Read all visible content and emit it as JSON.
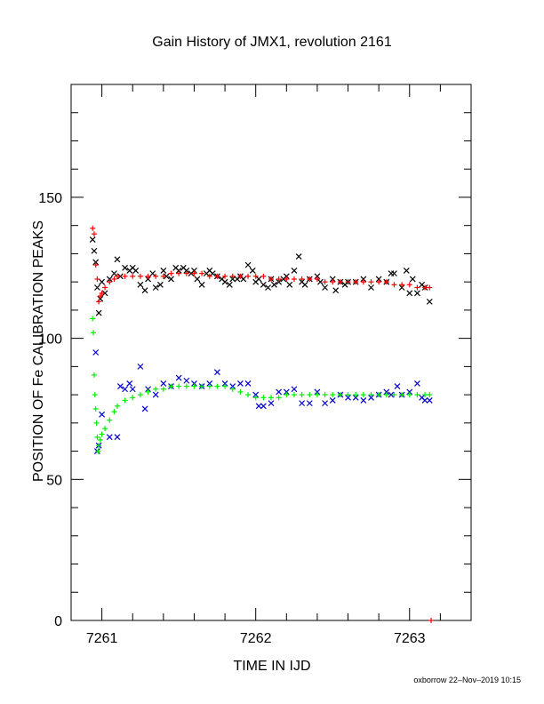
{
  "chart_data": {
    "type": "scatter",
    "title": "Gain History of JMX1, revolution 2161",
    "xlabel": "TIME IN IJD",
    "ylabel": "POSITION OF Fe CALIBRATION PEAKS",
    "xlim": [
      7260.8,
      7263.4
    ],
    "ylim": [
      0,
      190
    ],
    "x_ticks": [
      7261,
      7262,
      7263
    ],
    "y_ticks": [
      0,
      50,
      100,
      150
    ],
    "grid": false,
    "legend": "none",
    "series": [
      {
        "color": "#000000",
        "marker": "x",
        "points": [
          [
            7260.94,
            135
          ],
          [
            7260.95,
            131
          ],
          [
            7260.96,
            127
          ],
          [
            7260.97,
            118
          ],
          [
            7260.98,
            109
          ],
          [
            7260.99,
            114
          ],
          [
            7261.0,
            120
          ],
          [
            7261.02,
            116
          ],
          [
            7261.05,
            121
          ],
          [
            7261.08,
            123
          ],
          [
            7261.1,
            128
          ],
          [
            7261.12,
            122
          ],
          [
            7261.15,
            125
          ],
          [
            7261.18,
            124
          ],
          [
            7261.2,
            125
          ],
          [
            7261.22,
            124
          ],
          [
            7261.25,
            119
          ],
          [
            7261.28,
            117
          ],
          [
            7261.3,
            121
          ],
          [
            7261.33,
            123
          ],
          [
            7261.35,
            118
          ],
          [
            7261.38,
            119
          ],
          [
            7261.4,
            124
          ],
          [
            7261.42,
            122
          ],
          [
            7261.45,
            121
          ],
          [
            7261.48,
            125
          ],
          [
            7261.5,
            124
          ],
          [
            7261.53,
            125
          ],
          [
            7261.55,
            124
          ],
          [
            7261.58,
            123
          ],
          [
            7261.6,
            124
          ],
          [
            7261.62,
            121
          ],
          [
            7261.65,
            119
          ],
          [
            7261.68,
            123
          ],
          [
            7261.7,
            124
          ],
          [
            7261.72,
            123
          ],
          [
            7261.75,
            122
          ],
          [
            7261.78,
            121
          ],
          [
            7261.8,
            120
          ],
          [
            7261.83,
            119
          ],
          [
            7261.85,
            121
          ],
          [
            7261.88,
            121
          ],
          [
            7261.9,
            122
          ],
          [
            7261.92,
            121
          ],
          [
            7261.95,
            126
          ],
          [
            7261.98,
            124
          ],
          [
            7262.0,
            120
          ],
          [
            7262.02,
            121
          ],
          [
            7262.05,
            119
          ],
          [
            7262.08,
            118
          ],
          [
            7262.1,
            121
          ],
          [
            7262.12,
            119
          ],
          [
            7262.15,
            120
          ],
          [
            7262.18,
            121
          ],
          [
            7262.2,
            122
          ],
          [
            7262.22,
            119
          ],
          [
            7262.25,
            124
          ],
          [
            7262.28,
            129
          ],
          [
            7262.3,
            120
          ],
          [
            7262.32,
            119
          ],
          [
            7262.35,
            121
          ],
          [
            7262.4,
            122
          ],
          [
            7262.42,
            120
          ],
          [
            7262.45,
            118
          ],
          [
            7262.5,
            121
          ],
          [
            7262.52,
            117
          ],
          [
            7262.55,
            120
          ],
          [
            7262.58,
            119
          ],
          [
            7262.6,
            120
          ],
          [
            7262.65,
            120
          ],
          [
            7262.7,
            121
          ],
          [
            7262.75,
            118
          ],
          [
            7262.8,
            121
          ],
          [
            7262.85,
            120
          ],
          [
            7262.88,
            123
          ],
          [
            7262.9,
            123
          ],
          [
            7262.95,
            118
          ],
          [
            7262.98,
            124
          ],
          [
            7263.0,
            116
          ],
          [
            7263.02,
            121
          ],
          [
            7263.05,
            116
          ],
          [
            7263.08,
            119
          ],
          [
            7263.1,
            118
          ],
          [
            7263.13,
            113
          ]
        ]
      },
      {
        "color": "#ff0000",
        "marker": "+",
        "points": [
          [
            7260.94,
            139
          ],
          [
            7260.95,
            137
          ],
          [
            7260.96,
            126
          ],
          [
            7260.97,
            121
          ],
          [
            7260.98,
            113
          ],
          [
            7260.99,
            115
          ],
          [
            7261.0,
            116
          ],
          [
            7261.02,
            118
          ],
          [
            7261.05,
            120
          ],
          [
            7261.08,
            121
          ],
          [
            7261.1,
            122
          ],
          [
            7261.15,
            122
          ],
          [
            7261.2,
            122
          ],
          [
            7261.25,
            122
          ],
          [
            7261.3,
            122
          ],
          [
            7261.35,
            122
          ],
          [
            7261.4,
            122
          ],
          [
            7261.45,
            123
          ],
          [
            7261.5,
            123
          ],
          [
            7261.55,
            123
          ],
          [
            7261.6,
            123
          ],
          [
            7261.65,
            123
          ],
          [
            7261.7,
            122
          ],
          [
            7261.75,
            122
          ],
          [
            7261.8,
            122
          ],
          [
            7261.85,
            122
          ],
          [
            7261.9,
            122
          ],
          [
            7261.95,
            122
          ],
          [
            7262.0,
            122
          ],
          [
            7262.05,
            122
          ],
          [
            7262.1,
            121
          ],
          [
            7262.15,
            121
          ],
          [
            7262.2,
            121
          ],
          [
            7262.25,
            121
          ],
          [
            7262.3,
            121
          ],
          [
            7262.35,
            121
          ],
          [
            7262.4,
            121
          ],
          [
            7262.45,
            120
          ],
          [
            7262.5,
            120
          ],
          [
            7262.55,
            120
          ],
          [
            7262.6,
            120
          ],
          [
            7262.65,
            120
          ],
          [
            7262.7,
            120
          ],
          [
            7262.75,
            120
          ],
          [
            7262.8,
            120
          ],
          [
            7262.85,
            120
          ],
          [
            7262.9,
            119
          ],
          [
            7262.95,
            119
          ],
          [
            7263.0,
            119
          ],
          [
            7263.05,
            118
          ],
          [
            7263.1,
            118
          ],
          [
            7263.13,
            118
          ],
          [
            7263.14,
            0
          ]
        ]
      },
      {
        "color": "#0000cc",
        "marker": "x",
        "points": [
          [
            7260.96,
            95
          ],
          [
            7260.97,
            60
          ],
          [
            7260.98,
            62
          ],
          [
            7261.0,
            73
          ],
          [
            7261.05,
            65
          ],
          [
            7261.1,
            65
          ],
          [
            7261.12,
            83
          ],
          [
            7261.15,
            82
          ],
          [
            7261.18,
            84
          ],
          [
            7261.2,
            82
          ],
          [
            7261.25,
            90
          ],
          [
            7261.28,
            75
          ],
          [
            7261.3,
            82
          ],
          [
            7261.35,
            80
          ],
          [
            7261.4,
            84
          ],
          [
            7261.45,
            83
          ],
          [
            7261.5,
            86
          ],
          [
            7261.55,
            85
          ],
          [
            7261.6,
            84
          ],
          [
            7261.65,
            83
          ],
          [
            7261.7,
            84
          ],
          [
            7261.75,
            88
          ],
          [
            7261.8,
            84
          ],
          [
            7261.85,
            83
          ],
          [
            7261.9,
            84
          ],
          [
            7261.95,
            84
          ],
          [
            7262.0,
            80
          ],
          [
            7262.02,
            76
          ],
          [
            7262.05,
            76
          ],
          [
            7262.1,
            77
          ],
          [
            7262.15,
            81
          ],
          [
            7262.2,
            81
          ],
          [
            7262.25,
            82
          ],
          [
            7262.3,
            77
          ],
          [
            7262.35,
            77
          ],
          [
            7262.4,
            81
          ],
          [
            7262.45,
            77
          ],
          [
            7262.5,
            78
          ],
          [
            7262.55,
            80
          ],
          [
            7262.6,
            79
          ],
          [
            7262.65,
            79
          ],
          [
            7262.7,
            78
          ],
          [
            7262.75,
            79
          ],
          [
            7262.8,
            80
          ],
          [
            7262.85,
            81
          ],
          [
            7262.88,
            80
          ],
          [
            7262.92,
            83
          ],
          [
            7262.95,
            80
          ],
          [
            7263.0,
            81
          ],
          [
            7263.05,
            84
          ],
          [
            7263.08,
            79
          ],
          [
            7263.1,
            78
          ],
          [
            7263.13,
            78
          ]
        ]
      },
      {
        "color": "#00ee00",
        "marker": "+",
        "points": [
          [
            7260.94,
            107
          ],
          [
            7260.945,
            102
          ],
          [
            7260.95,
            87
          ],
          [
            7260.955,
            80
          ],
          [
            7260.96,
            75
          ],
          [
            7260.965,
            70
          ],
          [
            7260.97,
            65
          ],
          [
            7260.975,
            60
          ],
          [
            7260.98,
            62
          ],
          [
            7260.99,
            64
          ],
          [
            7261.0,
            66
          ],
          [
            7261.02,
            68
          ],
          [
            7261.05,
            71
          ],
          [
            7261.08,
            74
          ],
          [
            7261.1,
            76
          ],
          [
            7261.15,
            78
          ],
          [
            7261.2,
            79
          ],
          [
            7261.25,
            80
          ],
          [
            7261.3,
            81
          ],
          [
            7261.35,
            82
          ],
          [
            7261.4,
            82
          ],
          [
            7261.45,
            83
          ],
          [
            7261.5,
            83
          ],
          [
            7261.55,
            83
          ],
          [
            7261.6,
            83
          ],
          [
            7261.65,
            83
          ],
          [
            7261.7,
            83
          ],
          [
            7261.75,
            83
          ],
          [
            7261.8,
            83
          ],
          [
            7261.85,
            82
          ],
          [
            7261.9,
            81
          ],
          [
            7261.95,
            80
          ],
          [
            7262.0,
            79
          ],
          [
            7262.05,
            79
          ],
          [
            7262.1,
            79
          ],
          [
            7262.15,
            79
          ],
          [
            7262.2,
            80
          ],
          [
            7262.25,
            80
          ],
          [
            7262.3,
            80
          ],
          [
            7262.35,
            80
          ],
          [
            7262.4,
            80
          ],
          [
            7262.45,
            80
          ],
          [
            7262.5,
            80
          ],
          [
            7262.55,
            80
          ],
          [
            7262.6,
            80
          ],
          [
            7262.65,
            80
          ],
          [
            7262.7,
            80
          ],
          [
            7262.75,
            80
          ],
          [
            7262.8,
            80
          ],
          [
            7262.85,
            80
          ],
          [
            7262.9,
            80
          ],
          [
            7262.95,
            80
          ],
          [
            7263.0,
            80
          ],
          [
            7263.05,
            80
          ],
          [
            7263.1,
            80
          ],
          [
            7263.13,
            80
          ]
        ]
      }
    ]
  },
  "footer": "oxborrow 22–Nov–2019 10:15"
}
